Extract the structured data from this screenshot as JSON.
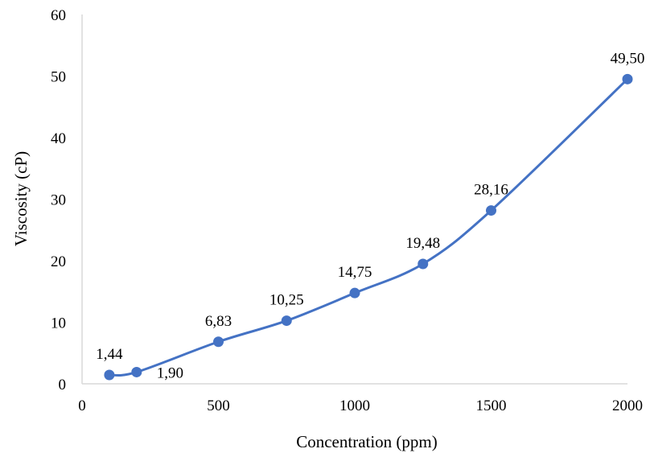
{
  "chart_data": {
    "type": "line",
    "title": "",
    "xlabel": "Concentration (ppm)",
    "ylabel": "Viscosity (cP)",
    "xlim": [
      0,
      2000
    ],
    "ylim": [
      0,
      60
    ],
    "x_ticks": [
      0,
      500,
      1000,
      1500,
      2000
    ],
    "y_ticks": [
      0,
      10,
      20,
      30,
      40,
      50,
      60
    ],
    "grid": false,
    "legend": "none",
    "smooth": true,
    "series": [
      {
        "color": "#4472C4",
        "points": [
          {
            "x": 100,
            "y": 1.44,
            "label": "1,44"
          },
          {
            "x": 200,
            "y": 1.9,
            "label": "1,90"
          },
          {
            "x": 500,
            "y": 6.83,
            "label": "6,83"
          },
          {
            "x": 750,
            "y": 10.25,
            "label": "10,25"
          },
          {
            "x": 1000,
            "y": 14.75,
            "label": "14,75"
          },
          {
            "x": 1250,
            "y": 19.48,
            "label": "19,48"
          },
          {
            "x": 1500,
            "y": 28.16,
            "label": "28,16"
          },
          {
            "x": 2000,
            "y": 49.5,
            "label": "49,50"
          }
        ]
      }
    ]
  }
}
